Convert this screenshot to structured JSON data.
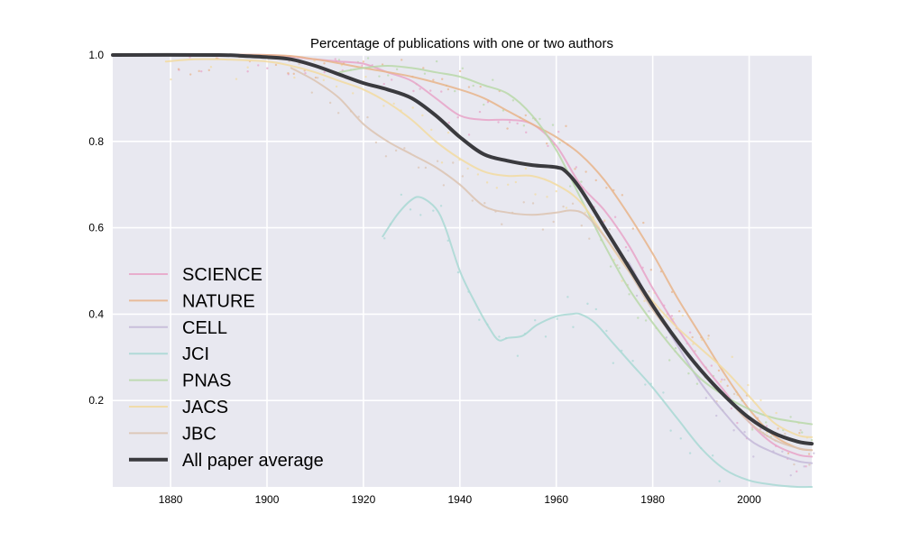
{
  "chart_data": {
    "type": "line",
    "title": "Percentage of publications with one or two authors",
    "xlabel": "",
    "ylabel": "",
    "xlim": [
      1868,
      2013
    ],
    "ylim": [
      0.0,
      1.0
    ],
    "xticks": [
      1880,
      1900,
      1920,
      1940,
      1960,
      1980,
      2000
    ],
    "yticks": [
      0.2,
      0.4,
      0.6,
      0.8,
      1.0
    ],
    "xtick_labels": [
      "1880",
      "1900",
      "1920",
      "1940",
      "1960",
      "1980",
      "2000"
    ],
    "ytick_labels": [
      "0.2",
      "0.4",
      "0.6",
      "0.8",
      "1.0"
    ],
    "grid": true,
    "background": "#e8e8f0",
    "legend_position": "lower-left",
    "series": [
      {
        "name": "SCIENCE",
        "color": "#e8a3c8",
        "width": 2,
        "opacity": 0.85,
        "x": [
          1880,
          1900,
          1910,
          1915,
          1920,
          1925,
          1930,
          1935,
          1940,
          1945,
          1950,
          1955,
          1960,
          1965,
          1970,
          1975,
          1980,
          1985,
          1990,
          1995,
          2000,
          2005,
          2010,
          2013
        ],
        "y": [
          1.0,
          1.0,
          0.99,
          0.985,
          0.98,
          0.96,
          0.94,
          0.9,
          0.86,
          0.85,
          0.85,
          0.84,
          0.79,
          0.7,
          0.64,
          0.56,
          0.46,
          0.37,
          0.29,
          0.22,
          0.15,
          0.1,
          0.075,
          0.07
        ]
      },
      {
        "name": "NATURE",
        "color": "#e8b48a",
        "width": 2,
        "opacity": 0.85,
        "x": [
          1870,
          1900,
          1910,
          1920,
          1930,
          1940,
          1945,
          1950,
          1955,
          1960,
          1965,
          1970,
          1975,
          1980,
          1985,
          1990,
          1995,
          2000,
          2005,
          2010,
          2013
        ],
        "y": [
          1.0,
          1.0,
          0.99,
          0.97,
          0.95,
          0.92,
          0.9,
          0.87,
          0.84,
          0.81,
          0.77,
          0.71,
          0.63,
          0.54,
          0.44,
          0.35,
          0.26,
          0.18,
          0.12,
          0.09,
          0.085
        ]
      },
      {
        "name": "CELL",
        "color": "#c4b8d8",
        "width": 2,
        "opacity": 0.85,
        "x": [
          1975,
          1980,
          1985,
          1990,
          1995,
          2000,
          2005,
          2010,
          2013
        ],
        "y": [
          0.52,
          0.42,
          0.33,
          0.24,
          0.17,
          0.11,
          0.08,
          0.06,
          0.055
        ]
      },
      {
        "name": "JCI",
        "color": "#a8d8d4",
        "width": 2,
        "opacity": 0.85,
        "x": [
          1924,
          1927,
          1930,
          1932,
          1935,
          1937,
          1940,
          1943,
          1946,
          1948,
          1950,
          1953,
          1956,
          1960,
          1963,
          1965,
          1968,
          1972,
          1976,
          1980,
          1985,
          1990,
          1995,
          2000,
          2005,
          2010,
          2013
        ],
        "y": [
          0.58,
          0.63,
          0.665,
          0.67,
          0.645,
          0.6,
          0.5,
          0.43,
          0.37,
          0.34,
          0.345,
          0.35,
          0.375,
          0.395,
          0.4,
          0.4,
          0.38,
          0.33,
          0.28,
          0.23,
          0.16,
          0.09,
          0.04,
          0.015,
          0.005,
          0.0,
          0.0
        ]
      },
      {
        "name": "PNAS",
        "color": "#b8d8a8",
        "width": 2,
        "opacity": 0.85,
        "x": [
          1915,
          1920,
          1925,
          1930,
          1935,
          1940,
          1945,
          1950,
          1955,
          1960,
          1965,
          1970,
          1975,
          1980,
          1985,
          1990,
          1995,
          2000,
          2005,
          2010,
          2013
        ],
        "y": [
          0.96,
          0.97,
          0.975,
          0.97,
          0.96,
          0.95,
          0.93,
          0.91,
          0.86,
          0.78,
          0.67,
          0.56,
          0.46,
          0.38,
          0.31,
          0.25,
          0.21,
          0.18,
          0.16,
          0.15,
          0.145
        ]
      },
      {
        "name": "JACS",
        "color": "#f2dba0",
        "width": 2,
        "opacity": 0.85,
        "x": [
          1879,
          1885,
          1890,
          1900,
          1905,
          1910,
          1915,
          1920,
          1925,
          1930,
          1935,
          1940,
          1945,
          1950,
          1955,
          1960,
          1965,
          1970,
          1975,
          1980,
          1985,
          1990,
          1995,
          2000,
          2005,
          2010,
          2013
        ],
        "y": [
          0.985,
          0.99,
          0.99,
          0.985,
          0.975,
          0.96,
          0.94,
          0.92,
          0.89,
          0.85,
          0.8,
          0.76,
          0.73,
          0.72,
          0.72,
          0.7,
          0.66,
          0.58,
          0.5,
          0.43,
          0.37,
          0.32,
          0.27,
          0.21,
          0.15,
          0.12,
          0.115
        ]
      },
      {
        "name": "JBC",
        "color": "#dcc3b0",
        "width": 2,
        "opacity": 0.85,
        "x": [
          1905,
          1910,
          1915,
          1920,
          1925,
          1930,
          1935,
          1940,
          1945,
          1950,
          1955,
          1960,
          1963,
          1966,
          1970,
          1975,
          1980,
          1985,
          1990,
          1995,
          2000,
          2005,
          2010,
          2013
        ],
        "y": [
          0.97,
          0.94,
          0.9,
          0.84,
          0.8,
          0.77,
          0.74,
          0.7,
          0.65,
          0.635,
          0.63,
          0.635,
          0.64,
          0.63,
          0.58,
          0.5,
          0.41,
          0.34,
          0.27,
          0.21,
          0.15,
          0.11,
          0.09,
          0.085
        ]
      },
      {
        "name": "All paper average",
        "color": "#3a3a3e",
        "width": 4,
        "opacity": 1,
        "x": [
          1868,
          1890,
          1895,
          1900,
          1905,
          1910,
          1915,
          1920,
          1925,
          1930,
          1935,
          1940,
          1945,
          1950,
          1955,
          1960,
          1962,
          1965,
          1970,
          1975,
          1980,
          1985,
          1990,
          1995,
          2000,
          2005,
          2010,
          2013
        ],
        "y": [
          1.0,
          1.0,
          0.998,
          0.995,
          0.99,
          0.975,
          0.955,
          0.935,
          0.92,
          0.9,
          0.86,
          0.81,
          0.77,
          0.755,
          0.745,
          0.74,
          0.73,
          0.69,
          0.6,
          0.51,
          0.42,
          0.34,
          0.27,
          0.21,
          0.16,
          0.125,
          0.105,
          0.1
        ]
      }
    ]
  }
}
